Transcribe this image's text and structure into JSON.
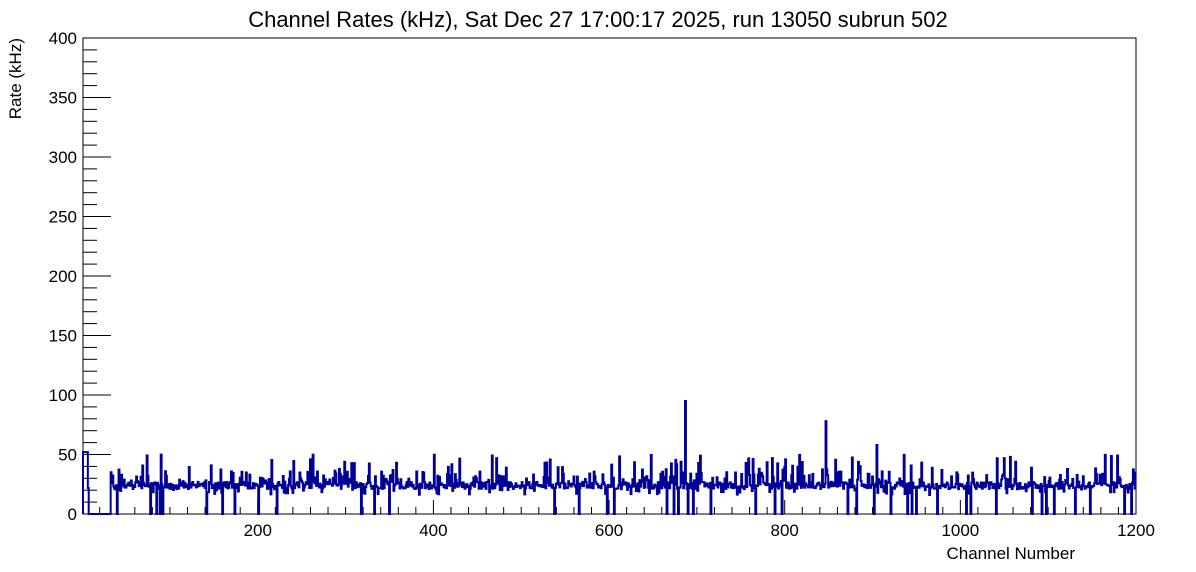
{
  "chart_data": {
    "type": "line",
    "title": "Channel Rates (kHz), Sat Dec 27 17:00:17 2025, run 13050 subrun 502",
    "xlabel": "Channel Number",
    "ylabel": "Rate (kHz)",
    "xlim": [
      1,
      1200
    ],
    "ylim": [
      0,
      400
    ],
    "x_ticks": [
      200,
      400,
      600,
      800,
      1000,
      1200
    ],
    "x_tick_labels": [
      "200",
      "400",
      "600",
      "800",
      "1000",
      "1200"
    ],
    "y_ticks": [
      0,
      50,
      100,
      150,
      200,
      250,
      300,
      350,
      400
    ],
    "y_tick_labels": [
      "0",
      "50",
      "100",
      "150",
      "200",
      "250",
      "300",
      "350",
      "400"
    ],
    "grid": false,
    "legend": "none",
    "series": [
      {
        "color": "#000099",
        "style": "step",
        "baseline_rate": 24,
        "noise_range": [
          16,
          50
        ],
        "features": [
          {
            "x_start": 1,
            "x_end": 6,
            "y": 52
          },
          {
            "x_start": 8,
            "x_end": 32,
            "y": 0
          },
          {
            "x": 687,
            "y": 95
          },
          {
            "x": 847,
            "y": 78
          },
          {
            "x": 905,
            "y": 58
          }
        ],
        "zero_channels": [
          40,
          78,
          85,
          89,
          92,
          142,
          160,
          174,
          201,
          222,
          318,
          333,
          350,
          538,
          566,
          598,
          606,
          666,
          674,
          679,
          690,
          696,
          716,
          767,
          789,
          797,
          872,
          882,
          902,
          921,
          940,
          945,
          950,
          974,
          1007,
          1012,
          1041,
          1082,
          1093,
          1098,
          1107,
          1131,
          1148,
          1187,
          1195
        ]
      }
    ]
  }
}
